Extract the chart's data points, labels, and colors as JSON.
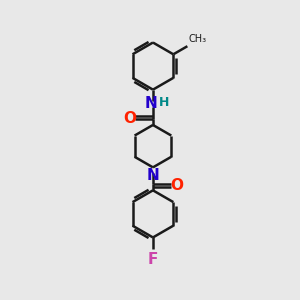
{
  "bg_color": "#e8e8e8",
  "bond_color": "#1a1a1a",
  "O_color": "#ff2200",
  "N_color": "#2200cc",
  "F_color": "#cc44aa",
  "NH_color": "#008888",
  "line_width": 1.8,
  "font_size_atom": 11,
  "figsize": [
    3.0,
    3.0
  ],
  "dpi": 100,
  "xlim": [
    0,
    10
  ],
  "ylim": [
    0,
    10
  ]
}
